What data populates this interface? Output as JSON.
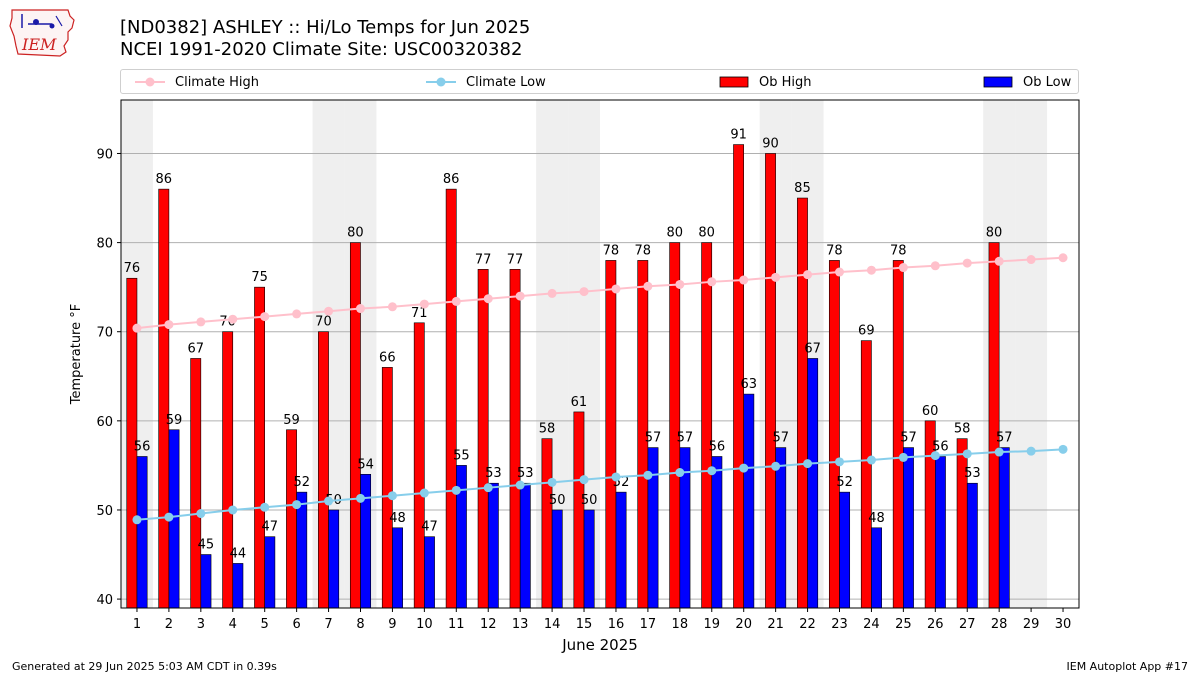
{
  "logo": {
    "text": "IEM"
  },
  "header": {
    "title": "[ND0382] ASHLEY :: Hi/Lo Temps for Jun 2025",
    "subtitle": "NCEI 1991-2020 Climate Site: USC00320382"
  },
  "legend": {
    "climate_high": "Climate High",
    "climate_low": "Climate Low",
    "ob_high": "Ob High",
    "ob_low": "Ob Low"
  },
  "footer": {
    "left": "Generated at 29 Jun 2025 5:03 AM CDT in 0.39s",
    "right": "IEM Autoplot App #17"
  },
  "colors": {
    "ob_high": "#ff0000",
    "ob_low": "#0000ff",
    "climate_high": "#ffc0cb",
    "climate_low": "#87ceeb",
    "weekend_band": "#efefef",
    "grid": "#b0b0b0"
  },
  "chart_data": {
    "type": "bar",
    "xlabel": "June 2025",
    "ylabel": "Temperature °F",
    "ylim": [
      39,
      96
    ],
    "yticks": [
      40,
      50,
      60,
      70,
      80,
      90
    ],
    "grid": "horizontal",
    "legend_position": "top",
    "weekend_days": [
      1,
      7,
      8,
      14,
      15,
      21,
      22,
      28,
      29
    ],
    "categories": [
      "1",
      "2",
      "3",
      "4",
      "5",
      "6",
      "7",
      "8",
      "9",
      "10",
      "11",
      "12",
      "13",
      "14",
      "15",
      "16",
      "17",
      "18",
      "19",
      "20",
      "21",
      "22",
      "23",
      "24",
      "25",
      "26",
      "27",
      "28",
      "29",
      "30"
    ],
    "series": [
      {
        "name": "Ob High",
        "kind": "bar",
        "values": [
          76,
          86,
          67,
          70,
          75,
          59,
          70,
          80,
          66,
          71,
          86,
          77,
          77,
          58,
          61,
          78,
          78,
          80,
          80,
          91,
          90,
          85,
          78,
          69,
          78,
          60,
          58,
          80,
          null,
          null
        ]
      },
      {
        "name": "Ob Low",
        "kind": "bar",
        "values": [
          56,
          59,
          45,
          44,
          47,
          52,
          50,
          54,
          48,
          47,
          55,
          53,
          53,
          50,
          50,
          52,
          57,
          57,
          56,
          63,
          57,
          67,
          52,
          48,
          57,
          56,
          53,
          57,
          null,
          null
        ]
      },
      {
        "name": "Climate High",
        "kind": "line",
        "values": [
          70.4,
          70.8,
          71.1,
          71.4,
          71.7,
          72.0,
          72.3,
          72.6,
          72.8,
          73.1,
          73.4,
          73.7,
          74.0,
          74.3,
          74.5,
          74.8,
          75.1,
          75.3,
          75.6,
          75.8,
          76.1,
          76.4,
          76.7,
          76.9,
          77.2,
          77.4,
          77.7,
          77.9,
          78.1,
          78.3
        ]
      },
      {
        "name": "Climate Low",
        "kind": "line",
        "values": [
          48.9,
          49.2,
          49.6,
          50.0,
          50.3,
          50.6,
          51.0,
          51.3,
          51.6,
          51.9,
          52.2,
          52.5,
          52.8,
          53.1,
          53.4,
          53.7,
          53.9,
          54.2,
          54.4,
          54.7,
          54.9,
          55.2,
          55.4,
          55.6,
          55.9,
          56.1,
          56.3,
          56.5,
          56.6,
          56.8
        ]
      }
    ]
  }
}
